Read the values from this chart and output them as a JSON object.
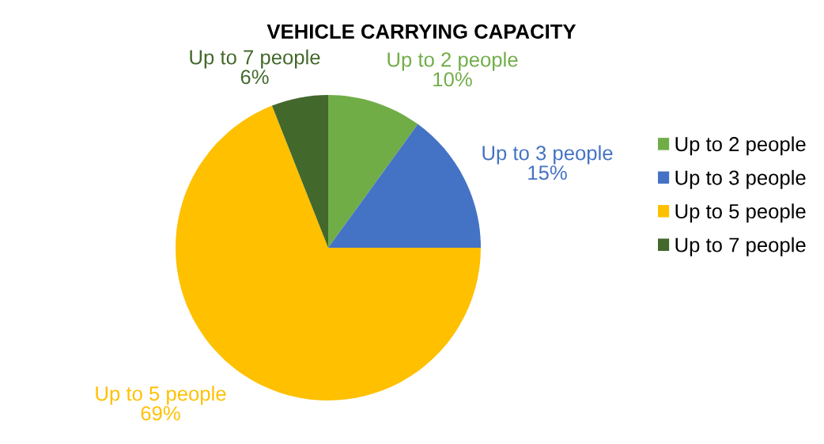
{
  "chart_data": {
    "type": "pie",
    "title": "VEHICLE CARRYING CAPACITY",
    "categories": [
      "Up to 2 people",
      "Up to 3 people",
      "Up to 5 people",
      "Up to 7 people"
    ],
    "values": [
      10,
      15,
      69,
      6
    ],
    "colors": [
      "#70ad47",
      "#4472c4",
      "#ffc000",
      "#43682b"
    ],
    "value_labels": [
      "10%",
      "15%",
      "69%",
      "6%"
    ],
    "legend": "right"
  }
}
